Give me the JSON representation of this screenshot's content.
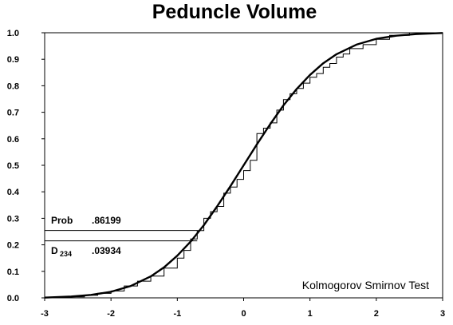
{
  "chart_data": {
    "type": "line",
    "title": "Peduncle Volume",
    "xlabel": "",
    "ylabel": "",
    "xlim": [
      -3,
      3
    ],
    "ylim": [
      0,
      1
    ],
    "x_ticks": [
      "-3",
      "-2",
      "-1",
      "0",
      "1",
      "2",
      "3"
    ],
    "y_ticks": [
      "0.0",
      "0.1",
      "0.2",
      "0.3",
      "0.4",
      "0.5",
      "0.6",
      "0.7",
      "0.8",
      "0.9",
      "1.0"
    ],
    "grid": false,
    "series": [
      {
        "kind": "theoretical-cdf",
        "x": [
          -3.0,
          -2.6,
          -2.3,
          -2.0,
          -1.7,
          -1.4,
          -1.2,
          -1.0,
          -0.8,
          -0.6,
          -0.4,
          -0.2,
          0.0,
          0.2,
          0.4,
          0.6,
          0.8,
          1.0,
          1.2,
          1.4,
          1.7,
          2.0,
          2.3,
          2.6,
          3.0
        ],
        "y": [
          0.001,
          0.005,
          0.011,
          0.023,
          0.045,
          0.081,
          0.115,
          0.159,
          0.212,
          0.274,
          0.345,
          0.421,
          0.5,
          0.579,
          0.655,
          0.726,
          0.788,
          0.841,
          0.885,
          0.919,
          0.955,
          0.977,
          0.989,
          0.995,
          0.999
        ]
      },
      {
        "kind": "empirical-cdf",
        "x": [
          -2.6,
          -2.4,
          -2.2,
          -2.0,
          -1.8,
          -1.6,
          -1.4,
          -1.2,
          -1.0,
          -0.9,
          -0.8,
          -0.7,
          -0.6,
          -0.5,
          -0.4,
          -0.3,
          -0.2,
          -0.1,
          0.0,
          0.1,
          0.2,
          0.3,
          0.4,
          0.5,
          0.6,
          0.7,
          0.8,
          0.9,
          1.0,
          1.1,
          1.2,
          1.3,
          1.4,
          1.5,
          1.6,
          1.8,
          2.0,
          2.2,
          2.5
        ],
        "y": [
          0.004,
          0.01,
          0.017,
          0.026,
          0.045,
          0.063,
          0.082,
          0.112,
          0.15,
          0.179,
          0.222,
          0.254,
          0.3,
          0.325,
          0.345,
          0.395,
          0.418,
          0.447,
          0.48,
          0.519,
          0.62,
          0.64,
          0.66,
          0.708,
          0.748,
          0.77,
          0.79,
          0.81,
          0.832,
          0.846,
          0.87,
          0.884,
          0.908,
          0.92,
          0.94,
          0.955,
          0.975,
          0.99,
          1.0
        ]
      }
    ],
    "annotation": {
      "prob_label": "Prob",
      "prob_value": ".86199",
      "d_label": "D",
      "d_subscript": "234",
      "d_value": ".03934",
      "ref_lines_y": [
        0.254,
        0.215
      ],
      "ref_lines_x_end": -0.7
    },
    "test_label": "Kolmogorov Smirnov Test"
  }
}
